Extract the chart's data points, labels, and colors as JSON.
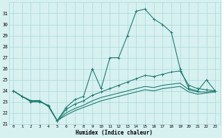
{
  "xlabel": "Humidex (Indice chaleur)",
  "x": [
    0,
    1,
    2,
    3,
    4,
    5,
    6,
    7,
    8,
    9,
    10,
    11,
    12,
    13,
    14,
    15,
    16,
    17,
    18,
    19,
    20,
    21,
    22,
    23
  ],
  "line1": [
    24.0,
    23.5,
    23.0,
    23.0,
    22.7,
    21.3,
    22.5,
    23.2,
    23.5,
    26.0,
    24.2,
    27.0,
    27.0,
    29.0,
    31.2,
    31.4,
    30.5,
    30.0,
    29.3,
    26.0,
    24.2,
    24.0,
    25.0,
    24.0
  ],
  "line2": [
    24.0,
    23.5,
    23.1,
    23.1,
    22.6,
    21.3,
    22.3,
    22.8,
    23.1,
    23.6,
    23.9,
    24.2,
    24.5,
    24.8,
    25.1,
    25.4,
    25.3,
    25.5,
    25.7,
    25.8,
    24.5,
    24.2,
    24.1,
    24.0
  ],
  "line3": [
    24.0,
    23.5,
    23.1,
    23.1,
    22.6,
    21.3,
    22.0,
    22.4,
    22.7,
    23.1,
    23.4,
    23.6,
    23.8,
    24.0,
    24.2,
    24.4,
    24.3,
    24.5,
    24.6,
    24.7,
    24.1,
    23.9,
    23.9,
    24.0
  ],
  "line4": [
    24.0,
    23.5,
    23.1,
    23.1,
    22.6,
    21.3,
    21.8,
    22.2,
    22.5,
    22.8,
    23.1,
    23.3,
    23.5,
    23.7,
    23.9,
    24.1,
    24.0,
    24.2,
    24.3,
    24.4,
    23.9,
    23.7,
    23.8,
    23.9
  ],
  "color": "#1a7a6e",
  "bg_color": "#d7f0f0",
  "grid_color": "#a8d8d8",
  "ylim": [
    21,
    32
  ],
  "yticks": [
    21,
    22,
    23,
    24,
    25,
    26,
    27,
    28,
    29,
    30,
    31
  ],
  "xticks": [
    0,
    1,
    2,
    3,
    4,
    5,
    6,
    7,
    8,
    9,
    10,
    11,
    12,
    13,
    14,
    15,
    16,
    17,
    18,
    19,
    20,
    21,
    22,
    23
  ]
}
